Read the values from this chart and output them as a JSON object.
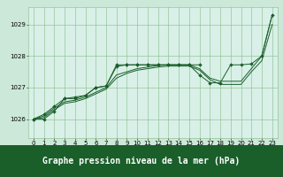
{
  "x": [
    0,
    1,
    2,
    3,
    4,
    5,
    6,
    7,
    8,
    9,
    10,
    11,
    12,
    13,
    14,
    15,
    16,
    17,
    18,
    19,
    20,
    21,
    22,
    23
  ],
  "line_markers1": {
    "x": [
      0,
      1,
      2,
      3,
      4,
      5,
      6,
      7,
      8,
      9,
      10,
      11,
      12,
      13,
      14,
      15,
      16
    ],
    "y": [
      1026.0,
      1026.0,
      1026.25,
      1026.65,
      1026.7,
      1026.75,
      1027.0,
      1027.05,
      1027.67,
      1027.72,
      1027.72,
      1027.72,
      1027.72,
      1027.72,
      1027.72,
      1027.72,
      1027.72
    ]
  },
  "line_markers2": {
    "x": [
      0,
      1,
      2,
      3,
      4,
      5,
      6,
      7,
      8,
      9,
      10,
      11,
      12,
      13,
      14,
      15,
      16,
      17,
      18,
      19,
      20,
      21,
      22,
      23
    ],
    "y": [
      1026.0,
      1026.15,
      1026.4,
      1026.65,
      1026.65,
      1026.75,
      1027.0,
      1027.05,
      1027.72,
      1027.72,
      1027.72,
      1027.72,
      1027.72,
      1027.72,
      1027.72,
      1027.72,
      1027.4,
      1027.15,
      1027.15,
      1027.72,
      1027.72,
      1027.75,
      1028.0,
      1029.3
    ]
  },
  "line_smooth1": {
    "x": [
      0,
      1,
      2,
      3,
      4,
      5,
      6,
      7,
      8,
      9,
      10,
      11,
      12,
      13,
      14,
      15,
      16,
      17,
      18,
      19,
      20,
      21,
      22,
      23
    ],
    "y": [
      1026.0,
      1026.1,
      1026.35,
      1026.55,
      1026.6,
      1026.7,
      1026.85,
      1027.0,
      1027.4,
      1027.5,
      1027.6,
      1027.65,
      1027.7,
      1027.72,
      1027.72,
      1027.72,
      1027.6,
      1027.3,
      1027.2,
      1027.2,
      1027.2,
      1027.6,
      1028.0,
      1029.3
    ]
  },
  "line_smooth2": {
    "x": [
      0,
      1,
      2,
      3,
      4,
      5,
      6,
      7,
      8,
      9,
      10,
      11,
      12,
      13,
      14,
      15,
      16,
      17,
      18,
      19,
      20,
      21,
      22,
      23
    ],
    "y": [
      1026.0,
      1026.05,
      1026.3,
      1026.5,
      1026.55,
      1026.65,
      1026.8,
      1026.95,
      1027.3,
      1027.45,
      1027.55,
      1027.6,
      1027.65,
      1027.68,
      1027.68,
      1027.68,
      1027.55,
      1027.25,
      1027.1,
      1027.1,
      1027.1,
      1027.5,
      1027.85,
      1029.0
    ]
  },
  "bg_color": "#cce8d8",
  "plot_bg": "#d8f0e8",
  "grid_color": "#88bb88",
  "line_color": "#1a5e2a",
  "xlabel": "Graphe pression niveau de la mer (hPa)",
  "xlim": [
    -0.5,
    23.5
  ],
  "ylim": [
    1025.4,
    1029.55
  ],
  "yticks": [
    1026,
    1027,
    1028,
    1029
  ],
  "xticks": [
    0,
    1,
    2,
    3,
    4,
    5,
    6,
    7,
    8,
    9,
    10,
    11,
    12,
    13,
    14,
    15,
    16,
    17,
    18,
    19,
    20,
    21,
    22,
    23
  ],
  "tick_fontsize": 5.0,
  "xlabel_fontsize": 7.0,
  "marker_size": 2.0,
  "lw": 0.7
}
